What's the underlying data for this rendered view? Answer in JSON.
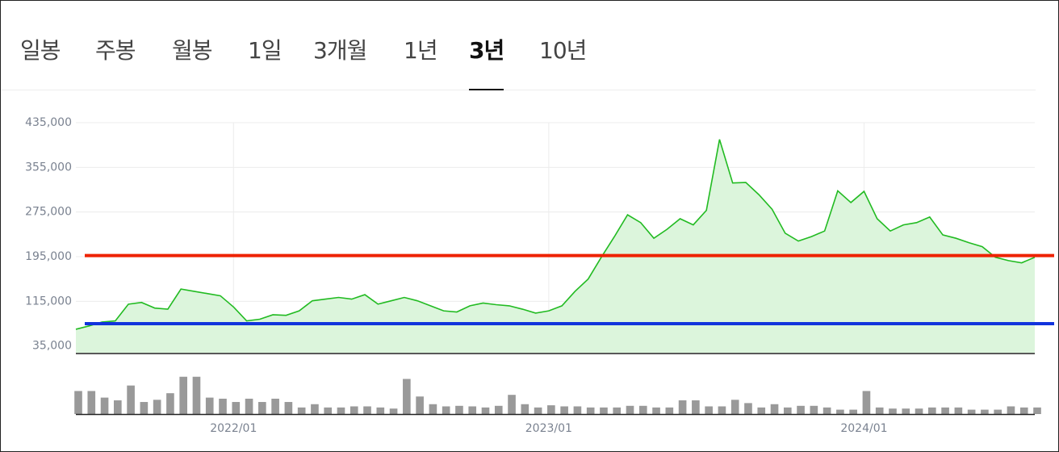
{
  "tabs": {
    "items": [
      "일봉",
      "주봉",
      "월봉",
      "1일",
      "3개월",
      "1년",
      "3년",
      "10년"
    ],
    "active": 6
  },
  "chart_data": {
    "type": "area",
    "categories": [
      null,
      null,
      null,
      null,
      null,
      null,
      null,
      null,
      null,
      null,
      null,
      null,
      "2022/01",
      null,
      null,
      null,
      null,
      null,
      null,
      null,
      null,
      null,
      null,
      null,
      null,
      null,
      null,
      null,
      null,
      null,
      null,
      null,
      null,
      null,
      null,
      null,
      "2023/01",
      null,
      null,
      null,
      null,
      null,
      null,
      null,
      null,
      null,
      null,
      null,
      null,
      null,
      null,
      null,
      null,
      null,
      null,
      null,
      null,
      null,
      null,
      null,
      "2024/01",
      null,
      null,
      null,
      null,
      null,
      null,
      null,
      null,
      null,
      null,
      null,
      null,
      null
    ],
    "series": [
      {
        "color": "#22bb22",
        "fill": "#dcf5dc",
        "values": [
          65000,
          71000,
          78000,
          80000,
          110000,
          113000,
          103000,
          101000,
          137000,
          133000,
          129000,
          125000,
          105000,
          80000,
          83000,
          91000,
          90000,
          98000,
          116000,
          119000,
          122000,
          119000,
          127000,
          110000,
          116000,
          122000,
          116000,
          107000,
          98000,
          96000,
          107000,
          112000,
          109000,
          107000,
          101000,
          94000,
          98000,
          107000,
          133000,
          155000,
          194000,
          231000,
          270000,
          256000,
          228000,
          244000,
          263000,
          252000,
          278000,
          405000,
          327000,
          328000,
          306000,
          280000,
          237000,
          223000,
          231000,
          241000,
          313000,
          292000,
          312000,
          263000,
          241000,
          252000,
          256000,
          266000,
          234000,
          228000,
          220000,
          213000,
          194000,
          188000,
          184000,
          194000
        ]
      }
    ],
    "ylim": [
      23000,
      435000
    ],
    "yticks": [
      {
        "value": 35000,
        "label": "35,000"
      },
      {
        "value": 115000,
        "label": "115,000"
      },
      {
        "value": 195000,
        "label": "195,000"
      },
      {
        "value": 275000,
        "label": "275,000"
      },
      {
        "value": 355000,
        "label": "355,000"
      },
      {
        "value": 435000,
        "label": "435,000"
      }
    ],
    "grid": true,
    "reference_lines": [
      {
        "value": 197000,
        "color": "#ee2200"
      },
      {
        "value": 75000,
        "color": "#1133dd"
      }
    ],
    "volume": {
      "color": "#999999",
      "vlim": [
        0,
        100
      ],
      "values": [
        42,
        42,
        30,
        25,
        52,
        22,
        26,
        38,
        68,
        68,
        30,
        28,
        22,
        28,
        22,
        28,
        22,
        12,
        18,
        12,
        12,
        14,
        14,
        12,
        10,
        64,
        32,
        18,
        14,
        15,
        14,
        12,
        15,
        35,
        18,
        12,
        16,
        14,
        14,
        12,
        12,
        12,
        15,
        15,
        12,
        12,
        25,
        25,
        14,
        14,
        26,
        20,
        12,
        18,
        12,
        15,
        15,
        12,
        8,
        8,
        42,
        12,
        10,
        10,
        10,
        12,
        12,
        12,
        8,
        8,
        8,
        14,
        12,
        12
      ]
    }
  }
}
